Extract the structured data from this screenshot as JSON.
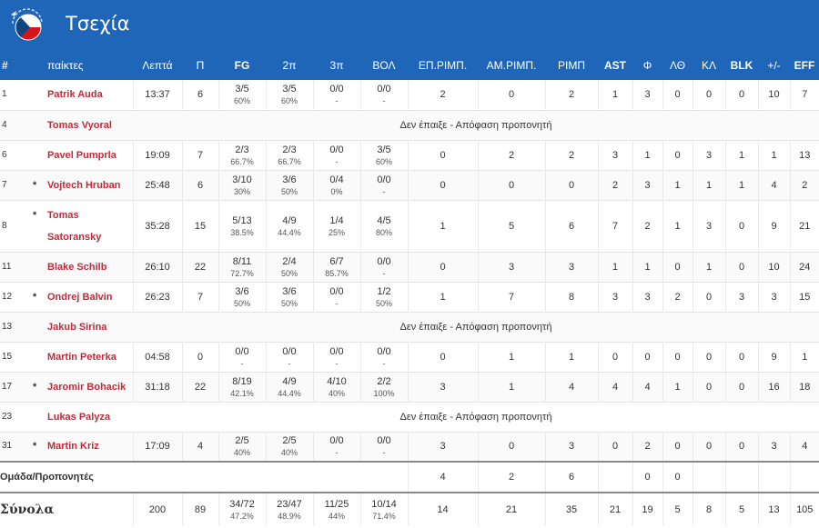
{
  "header": {
    "team_name": "Τσεχία",
    "flag_icon": "czech-flag-icon",
    "colors": {
      "header_bg": "#1f66b8",
      "player_name": "#c22a3a"
    }
  },
  "columns": [
    "#",
    "παίκτες",
    "Λεπτά",
    "Π",
    "FG",
    "2π",
    "3π",
    "ΒΟΛ",
    "ΕΠ.ΡΙΜΠ.",
    "ΑΜ.ΡΙΜΠ.",
    "ΡΙΜΠ",
    "AST",
    "Φ",
    "ΛΘ",
    "ΚΛ",
    "BLK",
    "+/-",
    "EFF"
  ],
  "dnp_text": "Δεν έπαιξε - Απόφαση προπονητή",
  "players": [
    {
      "num": "1",
      "starter": false,
      "name": "Patrik Auda",
      "min": "13:37",
      "pts": "6",
      "fg": "3/5",
      "fg_pct": "60%",
      "p2": "3/5",
      "p2_pct": "60%",
      "p3": "0/0",
      "p3_pct": "-",
      "ft": "0/0",
      "ft_pct": "-",
      "oreb": "2",
      "dreb": "0",
      "reb": "2",
      "ast": "1",
      "pf": "3",
      "to": "0",
      "stl": "0",
      "blk": "0",
      "pm": "10",
      "eff": "7"
    },
    {
      "num": "4",
      "starter": false,
      "name": "Tomas Vyoral",
      "dnp": true
    },
    {
      "num": "6",
      "starter": false,
      "name": "Pavel Pumprla",
      "min": "19:09",
      "pts": "7",
      "fg": "2/3",
      "fg_pct": "66.7%",
      "p2": "2/3",
      "p2_pct": "66.7%",
      "p3": "0/0",
      "p3_pct": "-",
      "ft": "3/5",
      "ft_pct": "60%",
      "oreb": "0",
      "dreb": "2",
      "reb": "2",
      "ast": "3",
      "pf": "1",
      "to": "0",
      "stl": "3",
      "blk": "1",
      "pm": "1",
      "eff": "13"
    },
    {
      "num": "7",
      "starter": true,
      "name": "Vojtech Hruban",
      "min": "25:48",
      "pts": "6",
      "fg": "3/10",
      "fg_pct": "30%",
      "p2": "3/6",
      "p2_pct": "50%",
      "p3": "0/4",
      "p3_pct": "0%",
      "ft": "0/0",
      "ft_pct": "-",
      "oreb": "0",
      "dreb": "0",
      "reb": "0",
      "ast": "2",
      "pf": "3",
      "to": "1",
      "stl": "1",
      "blk": "1",
      "pm": "4",
      "eff": "2"
    },
    {
      "num": "8",
      "starter": true,
      "name": "Tomas Satoransky",
      "name_line1": "Tomas",
      "name_line2": "Satoransky",
      "tall": true,
      "min": "35:28",
      "pts": "15",
      "fg": "5/13",
      "fg_pct": "38.5%",
      "p2": "4/9",
      "p2_pct": "44.4%",
      "p3": "1/4",
      "p3_pct": "25%",
      "ft": "4/5",
      "ft_pct": "80%",
      "oreb": "1",
      "dreb": "5",
      "reb": "6",
      "ast": "7",
      "pf": "2",
      "to": "1",
      "stl": "3",
      "blk": "0",
      "pm": "9",
      "eff": "21"
    },
    {
      "num": "11",
      "starter": false,
      "name": "Blake Schilb",
      "min": "26:10",
      "pts": "22",
      "fg": "8/11",
      "fg_pct": "72.7%",
      "p2": "2/4",
      "p2_pct": "50%",
      "p3": "6/7",
      "p3_pct": "85.7%",
      "ft": "0/0",
      "ft_pct": "-",
      "oreb": "0",
      "dreb": "3",
      "reb": "3",
      "ast": "1",
      "pf": "1",
      "to": "0",
      "stl": "1",
      "blk": "0",
      "pm": "10",
      "eff": "24"
    },
    {
      "num": "12",
      "starter": true,
      "name": "Ondrej Balvin",
      "min": "26:23",
      "pts": "7",
      "fg": "3/6",
      "fg_pct": "50%",
      "p2": "3/6",
      "p2_pct": "50%",
      "p3": "0/0",
      "p3_pct": "-",
      "ft": "1/2",
      "ft_pct": "50%",
      "oreb": "1",
      "dreb": "7",
      "reb": "8",
      "ast": "3",
      "pf": "3",
      "to": "2",
      "stl": "0",
      "blk": "3",
      "pm": "3",
      "eff": "15"
    },
    {
      "num": "13",
      "starter": false,
      "name": "Jakub Sirina",
      "dnp": true
    },
    {
      "num": "15",
      "starter": false,
      "name": "Martin Peterka",
      "min": "04:58",
      "pts": "0",
      "fg": "0/0",
      "fg_pct": "-",
      "p2": "0/0",
      "p2_pct": "-",
      "p3": "0/0",
      "p3_pct": "-",
      "ft": "0/0",
      "ft_pct": "-",
      "oreb": "0",
      "dreb": "1",
      "reb": "1",
      "ast": "0",
      "pf": "0",
      "to": "0",
      "stl": "0",
      "blk": "0",
      "pm": "9",
      "eff": "1"
    },
    {
      "num": "17",
      "starter": true,
      "name": "Jaromir Bohacik",
      "min": "31:18",
      "pts": "22",
      "fg": "8/19",
      "fg_pct": "42.1%",
      "p2": "4/9",
      "p2_pct": "44.4%",
      "p3": "4/10",
      "p3_pct": "40%",
      "ft": "2/2",
      "ft_pct": "100%",
      "oreb": "3",
      "dreb": "1",
      "reb": "4",
      "ast": "4",
      "pf": "4",
      "to": "1",
      "stl": "0",
      "blk": "0",
      "pm": "16",
      "eff": "18"
    },
    {
      "num": "23",
      "starter": false,
      "name": "Lukas Palyza",
      "dnp": true
    },
    {
      "num": "31",
      "starter": true,
      "name": "Martin Kriz",
      "min": "17:09",
      "pts": "4",
      "fg": "2/5",
      "fg_pct": "40%",
      "p2": "2/5",
      "p2_pct": "40%",
      "p3": "0/0",
      "p3_pct": "-",
      "ft": "0/0",
      "ft_pct": "-",
      "oreb": "3",
      "dreb": "0",
      "reb": "3",
      "ast": "0",
      "pf": "2",
      "to": "0",
      "stl": "0",
      "blk": "0",
      "pm": "3",
      "eff": "4"
    }
  ],
  "team_row": {
    "label": "Ομάδα/Προπονητές",
    "oreb": "4",
    "dreb": "2",
    "reb": "6",
    "pf": "0",
    "to": "0"
  },
  "totals": {
    "label": "Σύνολα",
    "min": "200",
    "pts": "89",
    "fg": "34/72",
    "fg_pct": "47.2%",
    "p2": "23/47",
    "p2_pct": "48.9%",
    "p3": "11/25",
    "p3_pct": "44%",
    "ft": "10/14",
    "ft_pct": "71.4%",
    "oreb": "14",
    "dreb": "21",
    "reb": "35",
    "ast": "21",
    "pf": "19",
    "to": "5",
    "stl": "8",
    "blk": "5",
    "pm": "13",
    "eff": "105"
  }
}
